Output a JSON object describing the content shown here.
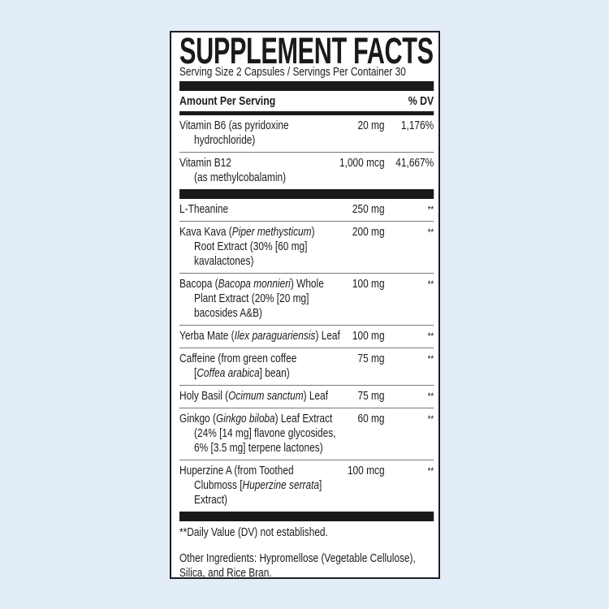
{
  "title": "SUPPLEMENT FACTS",
  "serving": "Serving Size 2 Capsules / Servings Per Container 30",
  "header": {
    "amount": "Amount Per Serving",
    "dv": "% DV"
  },
  "vitamins": [
    {
      "lines": [
        [
          [
            "Vitamin B6 (as pyridoxine",
            false
          ]
        ],
        [
          [
            "hydrochloride)",
            false
          ]
        ]
      ],
      "amount": "20 mg",
      "dv": "1,176%"
    },
    {
      "lines": [
        [
          [
            "Vitamin B12",
            false
          ]
        ],
        [
          [
            "(as methylcobalamin)",
            false
          ]
        ]
      ],
      "amount": "1,000 mcg",
      "dv": "41,667%"
    }
  ],
  "ingredients": [
    {
      "lines": [
        [
          [
            "L-Theanine",
            false
          ]
        ]
      ],
      "amount": "250 mg",
      "dv": "**"
    },
    {
      "lines": [
        [
          [
            "Kava Kava (",
            false
          ],
          [
            "Piper methysticum",
            true
          ],
          [
            ")",
            false
          ]
        ],
        [
          [
            "Root Extract (30% [60 mg]",
            false
          ]
        ],
        [
          [
            "kavalactones)",
            false
          ]
        ]
      ],
      "amount": "200 mg",
      "dv": "**"
    },
    {
      "lines": [
        [
          [
            "Bacopa (",
            false
          ],
          [
            "Bacopa monnieri",
            true
          ],
          [
            ") Whole",
            false
          ]
        ],
        [
          [
            "Plant Extract (20% [20 mg]",
            false
          ]
        ],
        [
          [
            "bacosides A&B)",
            false
          ]
        ]
      ],
      "amount": "100 mg",
      "dv": "**"
    },
    {
      "lines": [
        [
          [
            "Yerba Mate (",
            false
          ],
          [
            "Ilex paraguariensis",
            true
          ],
          [
            ") Leaf",
            false
          ]
        ]
      ],
      "amount": "100 mg",
      "dv": "**"
    },
    {
      "lines": [
        [
          [
            "Caffeine (from green coffee",
            false
          ]
        ],
        [
          [
            "[",
            false
          ],
          [
            "Coffea arabica",
            true
          ],
          [
            "] bean)",
            false
          ]
        ]
      ],
      "amount": "75 mg",
      "dv": "**"
    },
    {
      "lines": [
        [
          [
            "Holy Basil (",
            false
          ],
          [
            "Ocimum sanctum",
            true
          ],
          [
            ") Leaf",
            false
          ]
        ]
      ],
      "amount": "75 mg",
      "dv": "**"
    },
    {
      "lines": [
        [
          [
            "Ginkgo (",
            false
          ],
          [
            "Ginkgo biloba",
            true
          ],
          [
            ") Leaf Extract",
            false
          ]
        ],
        [
          [
            "(24% [14 mg] flavone glycosides,",
            false
          ]
        ],
        [
          [
            "6% [3.5 mg] terpene lactones)",
            false
          ]
        ]
      ],
      "amount": "60 mg",
      "dv": "**"
    },
    {
      "lines": [
        [
          [
            "Huperzine A (from Toothed",
            false
          ]
        ],
        [
          [
            "Clubmoss [",
            false
          ],
          [
            "Huperzine serrata",
            true
          ],
          [
            "]",
            false
          ]
        ],
        [
          [
            "Extract)",
            false
          ]
        ]
      ],
      "amount": "100 mcg",
      "dv": "**"
    }
  ],
  "footnote": "**Daily Value (DV) not established.",
  "other_ingredients": [
    "Other Ingredients: Hypromellose (Vegetable Cellulose),",
    "Silica, and Rice Bran."
  ],
  "colors": {
    "background": "#e3edf8",
    "ink": "#1a1a1a"
  }
}
